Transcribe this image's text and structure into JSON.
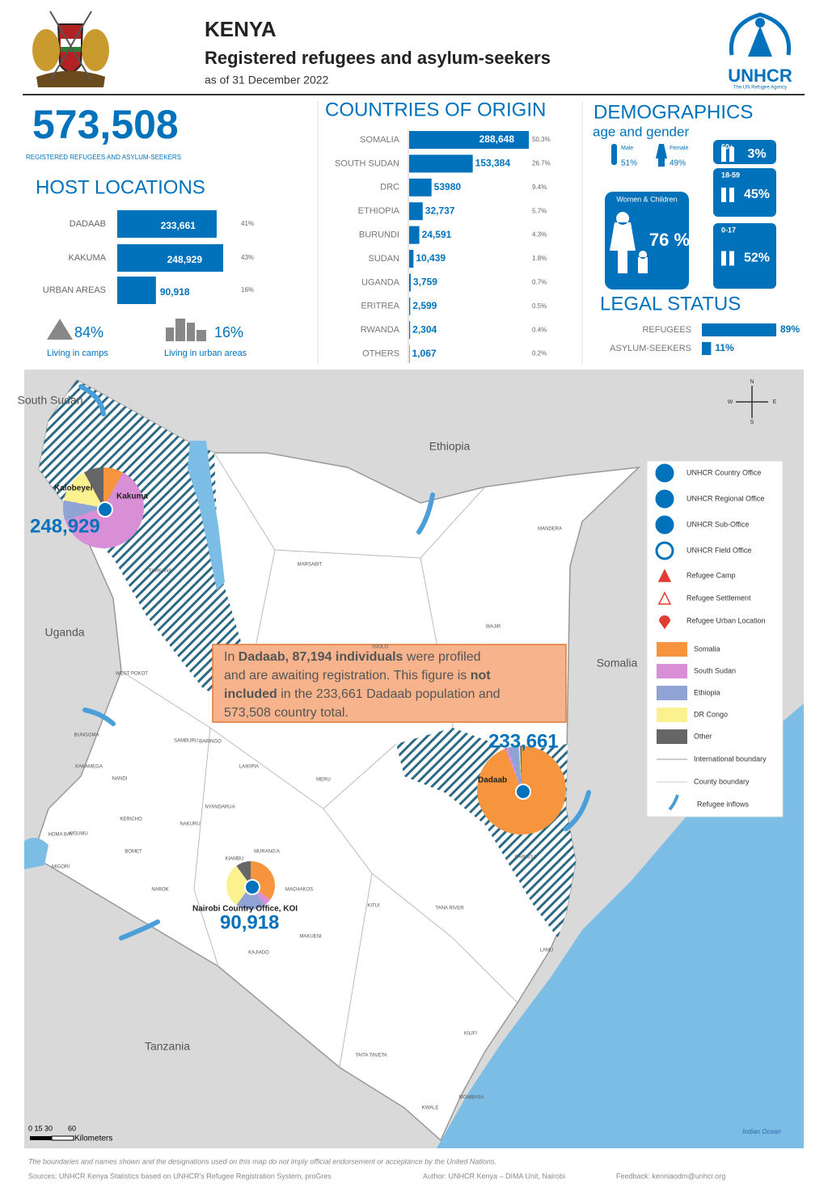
{
  "header": {
    "title": "KENYA",
    "subtitle": "Registered refugees and asylum-seekers",
    "date": "as of 31 December 2022",
    "org": "UNHCR",
    "org_tagline": "The UN Refugee Agency"
  },
  "total": {
    "value": "573,508",
    "label": "REGISTERED REFUGEES AND ASYLUM-SEEKERS"
  },
  "host_locations": {
    "title": "HOST LOCATIONS",
    "color": "#0072bc",
    "categories": [
      "DADAAB",
      "KAKUMA",
      "URBAN AREAS"
    ],
    "values": [
      233661,
      248929,
      90918
    ],
    "value_labels": [
      "233,661",
      "248,929",
      "90,918"
    ],
    "shares": [
      "41%",
      "43%",
      "16%"
    ]
  },
  "living": [
    {
      "value": "84%",
      "label": "Living in camps"
    },
    {
      "value": "16%",
      "label": "Living in urban areas"
    }
  ],
  "countries_of_origin": {
    "title": "COUNTRIES OF ORIGIN",
    "color": "#0072bc",
    "categories": [
      "SOMALIA",
      "SOUTH SUDAN",
      "DRC",
      "ETHIOPIA",
      "BURUNDI",
      "SUDAN",
      "UGANDA",
      "ERITREA",
      "RWANDA",
      "OTHERS"
    ],
    "values": [
      288648,
      153384,
      53980,
      32737,
      24591,
      10439,
      3759,
      2599,
      2304,
      1067
    ],
    "value_labels": [
      "288,648",
      "153,384",
      "53980",
      "32,737",
      "24,591",
      "10,439",
      "3,759",
      "2,599",
      "2,304",
      "1,067"
    ],
    "shares": [
      "50.3%",
      "26.7%",
      "9.4%",
      "5.7%",
      "4.3%",
      "1.8%",
      "0.7%",
      "0.5%",
      "0.4%",
      "0.2%"
    ]
  },
  "demographics": {
    "title": "DEMOGRAPHICS",
    "subtitle": "age and gender",
    "male": {
      "label": "Male",
      "value": "51%"
    },
    "female": {
      "label": "Female",
      "value": "49%"
    },
    "women_children": {
      "label": "Women & Children",
      "value": "76 %"
    },
    "age_groups": [
      {
        "label": "60+",
        "value": "3%"
      },
      {
        "label": "18-59",
        "value": "45%"
      },
      {
        "label": "0-17",
        "value": "52%"
      }
    ]
  },
  "legal_status": {
    "title": "LEGAL STATUS",
    "color": "#0072bc",
    "categories": [
      "REFUGEES",
      "ASYLUM-SEEKERS"
    ],
    "values": [
      89,
      11
    ],
    "value_labels": [
      "89%",
      "11%"
    ]
  },
  "map": {
    "countries": [
      "South Sudan",
      "Ethiopia",
      "Uganda",
      "Somalia",
      "Tanzania"
    ],
    "counties": [
      "TURKANA",
      "MARSABIT",
      "MANDERA",
      "WAJIR",
      "GARISSA",
      "ISIOLO",
      "MERU",
      "LAIKIPIA",
      "SAMBURU",
      "KITUI",
      "TANA RIVER",
      "LAMU",
      "KILIFI",
      "MOMBASA",
      "KWALE",
      "TAITA TAVETA",
      "MAKUENI",
      "KAJIADO",
      "NAROK",
      "NAKURU",
      "KIAMBU",
      "NYANDARUA",
      "MURANG'A",
      "MACHAKOS",
      "BUNGOMA",
      "KAKAMEGA",
      "KISUMU",
      "BOMET",
      "KERICHO",
      "NANDI",
      "BARINGO",
      "WEST POKOT",
      "MIGORI",
      "HOMA BAY"
    ],
    "sites": [
      {
        "name": "Kakuma",
        "extra": "Kalobeyei",
        "value": "248,929",
        "shares": [
          8,
          62,
          8,
          14,
          8
        ]
      },
      {
        "name": "Dadaab",
        "value": "233,661",
        "shares": [
          94,
          1,
          4,
          0.5,
          0.5
        ]
      },
      {
        "name": "Nairobi Country Office, KOI",
        "value": "90,918",
        "shares": [
          35,
          5,
          20,
          30,
          10
        ]
      }
    ],
    "pie_legend": [
      {
        "name": "Somalia",
        "color": "#f7943e"
      },
      {
        "name": "South Sudan",
        "color": "#d98fd6"
      },
      {
        "name": "Ethiopia",
        "color": "#8fa3d5"
      },
      {
        "name": "DR Congo",
        "color": "#fbf18f"
      },
      {
        "name": "Other",
        "color": "#666666"
      }
    ],
    "office_legend": [
      "UNHCR Country Office",
      "UNHCR Regional Office",
      "UNHCR Sub-Office",
      "UNHCR Field Office",
      "Refugee Camp",
      "Refugee Settlement",
      "Refugee Urban Location"
    ],
    "line_legend": [
      "International boundary",
      "County boundary",
      "Refugee inflows"
    ],
    "callout": [
      [
        {
          "text": "In "
        },
        {
          "text": "Dadaab, 87,194 individuals",
          "bold": true
        },
        {
          "text": " were profiled"
        }
      ],
      [
        {
          "text": "and are awaiting registration. This figure is "
        },
        {
          "text": "not",
          "bold": true
        }
      ],
      [
        {
          "text": "included",
          "bold": true
        },
        {
          "text": " in the 233,661 Dadaab population and"
        }
      ],
      [
        {
          "text": "573,508 country total."
        }
      ]
    ],
    "scale": [
      "0 15 30",
      "60",
      "Kilometers"
    ],
    "compass": [
      "N",
      "W",
      "E",
      "S"
    ],
    "ocean": "Indian Ocean"
  },
  "footer": {
    "disclaimer": "The boundaries and names shown and the designations used on this map do not imply official endorsement or acceptance by the United Nations.",
    "sources": "Sources: UNHCR Kenya Statistics based on UNHCR's Refugee Registration System, proGres",
    "author": "Author: UNHCR Kenya – DIMA Unit, Nairobi",
    "feedback": "Feedback: kenniaodm@unhcr.org"
  }
}
